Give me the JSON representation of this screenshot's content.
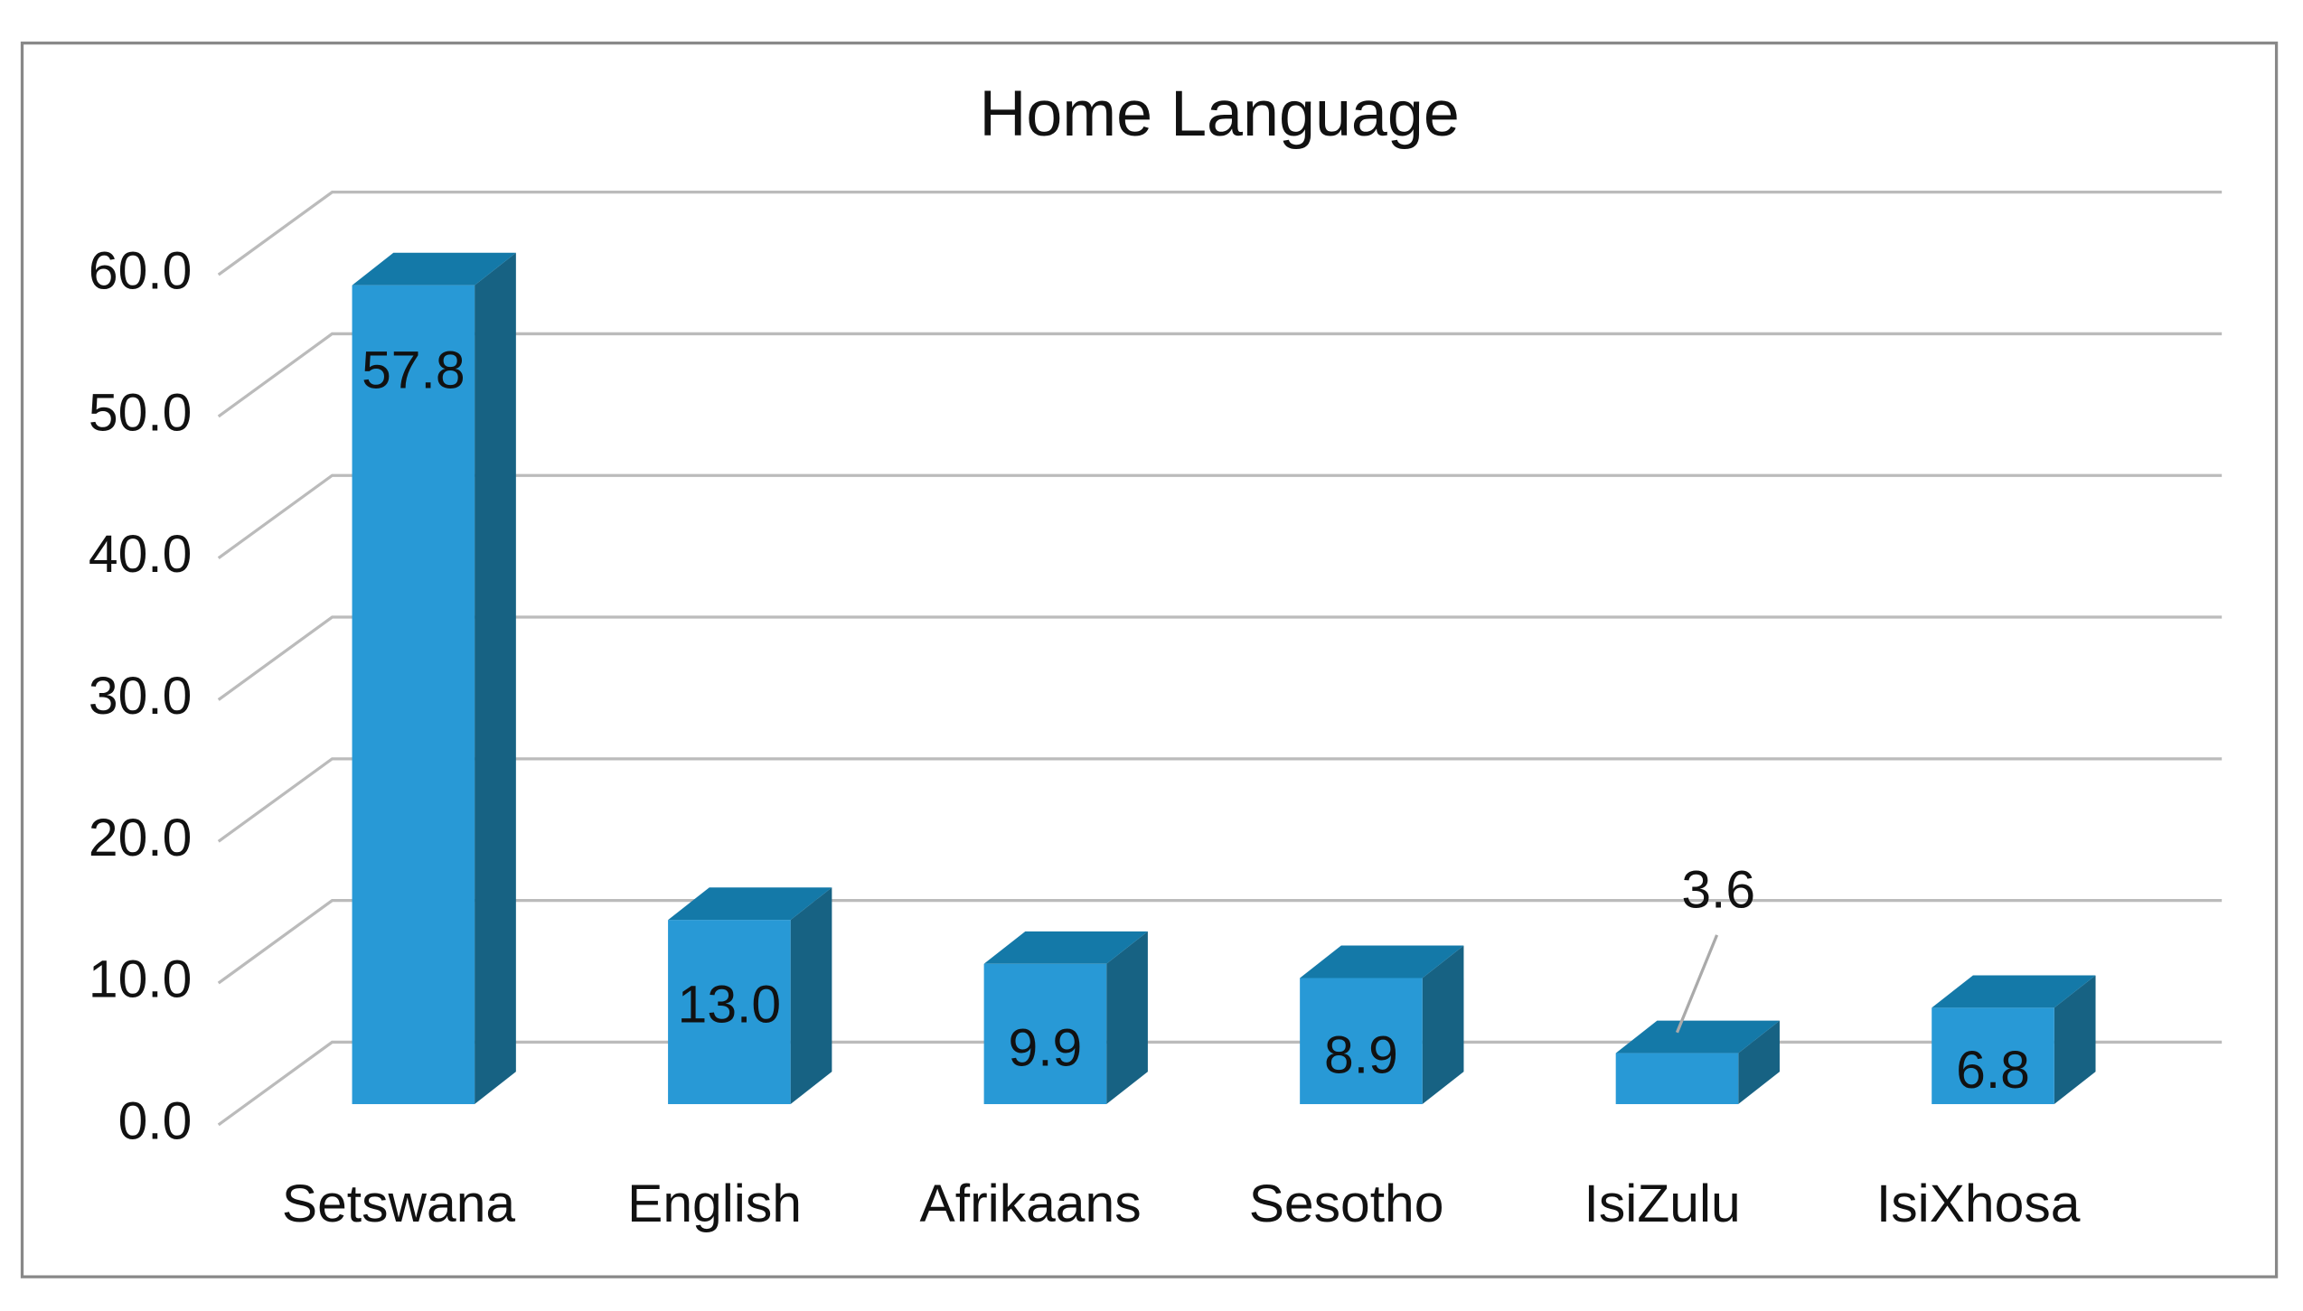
{
  "chart_data": {
    "type": "bar3d",
    "title": "Home Language",
    "categories": [
      "Setswana",
      "English",
      "Afrikaans",
      "Sesotho",
      "IsiZulu",
      "IsiXhosa"
    ],
    "values": [
      57.8,
      13.0,
      9.9,
      8.9,
      3.6,
      6.8
    ],
    "value_labels": [
      "57.8",
      "13.0",
      "9.9",
      "8.9",
      "3.6",
      "6.8"
    ],
    "color": "#2899d6",
    "ylim": [
      0,
      60
    ],
    "yticks": [
      {
        "value": 0,
        "label": "0.0"
      },
      {
        "value": 10,
        "label": "10.0"
      },
      {
        "value": 20,
        "label": "20.0"
      },
      {
        "value": 30,
        "label": "30.0"
      },
      {
        "value": 40,
        "label": "40.0"
      },
      {
        "value": 50,
        "label": "50.0"
      },
      {
        "value": 60,
        "label": "60.0"
      }
    ],
    "grid": true
  }
}
